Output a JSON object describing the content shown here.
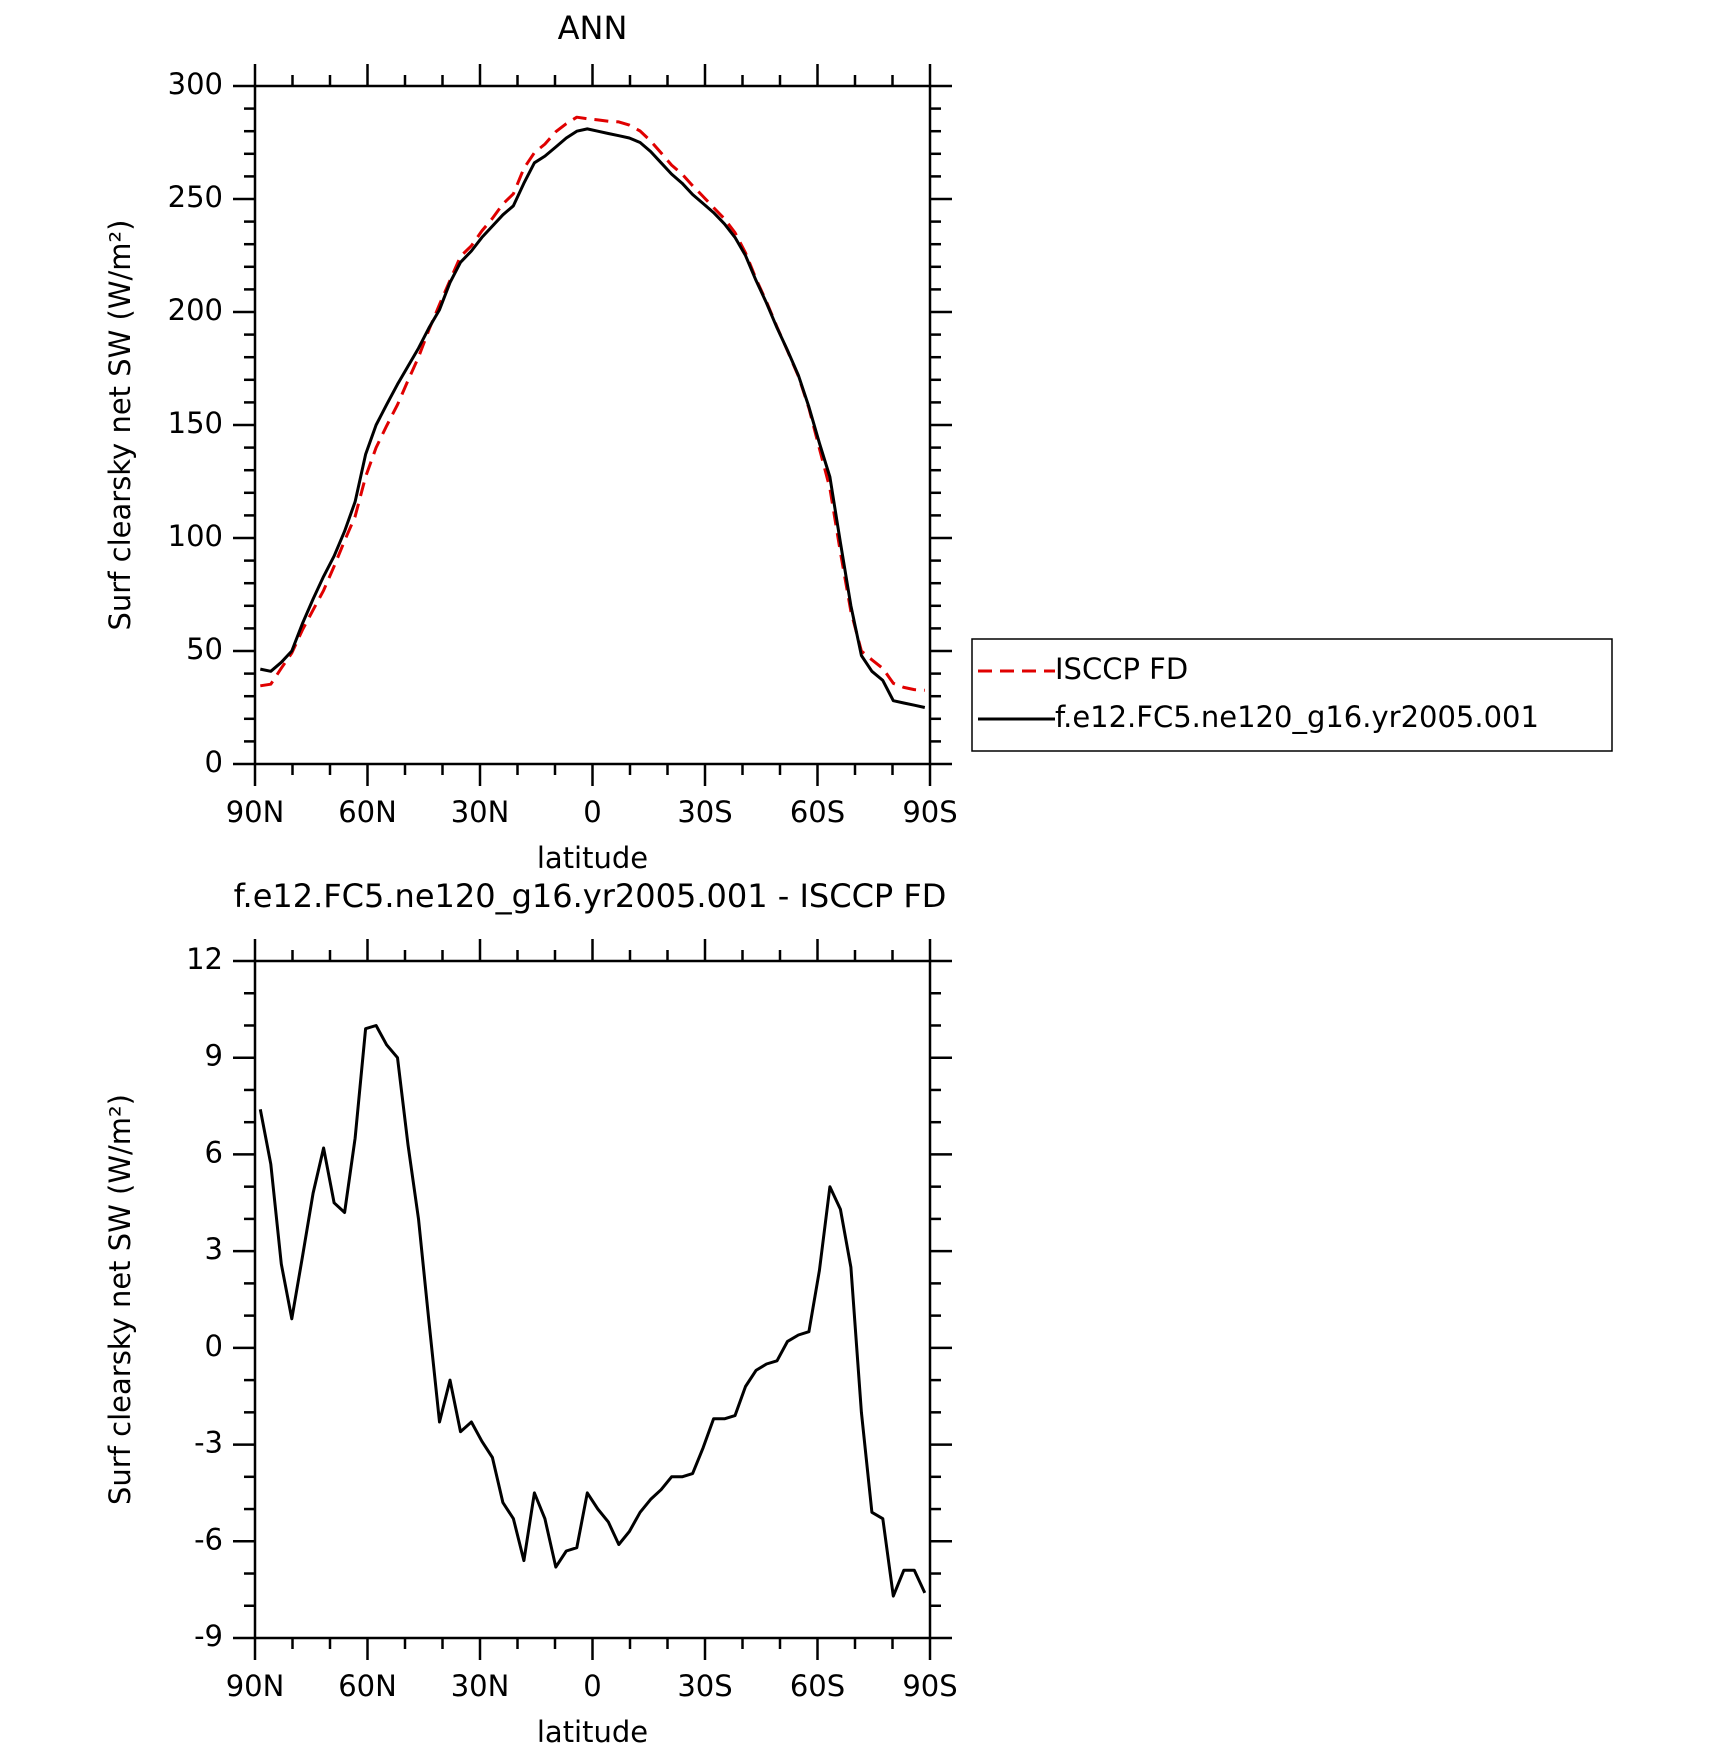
{
  "chart_data": [
    {
      "type": "line",
      "title": "ANN",
      "xlabel": "latitude",
      "ylabel": "Surf clearsky net SW (W/m²)",
      "xlim": [
        90,
        -90
      ],
      "xticks": [
        {
          "value": 90,
          "label": "90N"
        },
        {
          "value": 60,
          "label": "60N"
        },
        {
          "value": 30,
          "label": "30N"
        },
        0,
        {
          "value": -30,
          "label": "30S"
        },
        {
          "value": -60,
          "label": "60S"
        },
        {
          "value": -90,
          "label": "90S"
        }
      ],
      "ylim": [
        0,
        300
      ],
      "yticks": [
        0,
        50,
        100,
        150,
        200,
        250,
        300
      ],
      "legend": "right",
      "x": [
        88.6,
        85.8,
        83.0,
        80.2,
        77.4,
        74.5,
        71.7,
        68.9,
        66.1,
        63.3,
        60.5,
        57.7,
        54.9,
        52.0,
        49.2,
        46.4,
        43.6,
        40.8,
        38.0,
        35.2,
        32.3,
        29.5,
        26.7,
        23.9,
        21.1,
        18.3,
        15.5,
        12.7,
        9.8,
        7.0,
        4.2,
        1.4,
        -1.4,
        -4.2,
        -7.0,
        -9.8,
        -12.7,
        -15.5,
        -18.3,
        -21.1,
        -23.9,
        -26.7,
        -29.5,
        -32.3,
        -35.2,
        -38.0,
        -40.8,
        -43.6,
        -46.4,
        -49.2,
        -52.0,
        -54.9,
        -57.7,
        -60.5,
        -63.3,
        -66.1,
        -68.9,
        -71.7,
        -74.5,
        -77.4,
        -80.2,
        -83.0,
        -85.8,
        -88.6
      ],
      "series": [
        {
          "name": "ISCCP FD",
          "color": "#e00000",
          "linestyle": "dashed",
          "values": [
            34.6,
            35.3,
            42.4,
            49.1,
            59.2,
            68.2,
            76.8,
            87.5,
            98.8,
            109.5,
            127.1,
            140,
            149.6,
            159,
            169.7,
            180,
            192.2,
            203.3,
            214,
            224.6,
            229.3,
            235.9,
            241.4,
            247.8,
            252.3,
            263.6,
            270.5,
            274.3,
            279.8,
            283.3,
            286.2,
            285.5,
            285,
            284.4,
            284.1,
            282.7,
            280.1,
            275.7,
            270.4,
            265,
            261,
            255.9,
            251.1,
            246.2,
            241.2,
            235.1,
            226.2,
            214.7,
            204.5,
            193.4,
            182.8,
            171.6,
            157.5,
            139.6,
            122,
            93.7,
            67.5,
            50,
            46.1,
            42.3,
            35.7,
            33.9,
            32.9,
            32.6
          ]
        },
        {
          "name": "f.e12.FC5.ne120_g16.yr2005.001",
          "color": "#000000",
          "linestyle": "solid",
          "values": [
            42,
            41,
            45,
            50,
            62,
            73,
            83,
            92,
            103,
            116,
            137,
            150,
            159,
            168,
            176,
            184,
            193,
            201,
            213,
            222,
            227,
            233,
            238,
            243,
            247,
            257,
            266,
            269,
            273,
            277,
            280,
            281,
            280,
            279,
            278,
            277,
            275,
            271,
            266,
            261,
            257,
            252,
            248,
            244,
            239,
            233,
            225,
            214,
            204,
            193,
            183,
            172,
            158,
            142,
            127,
            98,
            70,
            48,
            41,
            37,
            28,
            27,
            26,
            25
          ]
        }
      ]
    },
    {
      "type": "line",
      "title": "f.e12.FC5.ne120_g16.yr2005.001 - ISCCP FD",
      "xlabel": "latitude",
      "ylabel": "Surf clearsky net SW (W/m²)",
      "xlim": [
        90,
        -90
      ],
      "xticks": [
        {
          "value": 90,
          "label": "90N"
        },
        {
          "value": 60,
          "label": "60N"
        },
        {
          "value": 30,
          "label": "30N"
        },
        0,
        {
          "value": -30,
          "label": "30S"
        },
        {
          "value": -60,
          "label": "60S"
        },
        {
          "value": -90,
          "label": "90S"
        }
      ],
      "ylim": [
        -9,
        12
      ],
      "yticks": [
        -9,
        -6,
        -3,
        0,
        3,
        6,
        9,
        12
      ],
      "x": [
        88.6,
        85.8,
        83.0,
        80.2,
        77.4,
        74.5,
        71.7,
        68.9,
        66.1,
        63.3,
        60.5,
        57.7,
        54.9,
        52.0,
        49.2,
        46.4,
        43.6,
        40.8,
        38.0,
        35.2,
        32.3,
        29.5,
        26.7,
        23.9,
        21.1,
        18.3,
        15.5,
        12.7,
        9.8,
        7.0,
        4.2,
        1.4,
        -1.4,
        -4.2,
        -7.0,
        -9.8,
        -12.7,
        -15.5,
        -18.3,
        -21.1,
        -23.9,
        -26.7,
        -29.5,
        -32.3,
        -35.2,
        -38.0,
        -40.8,
        -43.6,
        -46.4,
        -49.2,
        -52.0,
        -54.9,
        -57.7,
        -60.5,
        -63.3,
        -66.1,
        -68.9,
        -71.7,
        -74.5,
        -77.4,
        -80.2,
        -83.0,
        -85.8,
        -88.6
      ],
      "series": [
        {
          "color": "#000000",
          "linestyle": "solid",
          "values": [
            7.4,
            5.7,
            2.6,
            0.9,
            2.8,
            4.8,
            6.2,
            4.5,
            4.2,
            6.5,
            9.9,
            10.0,
            9.4,
            9.0,
            6.3,
            4.0,
            0.8,
            -2.3,
            -1.0,
            -2.6,
            -2.3,
            -2.9,
            -3.4,
            -4.8,
            -5.3,
            -6.6,
            -4.5,
            -5.3,
            -6.8,
            -6.3,
            -6.2,
            -4.5,
            -5.0,
            -5.4,
            -6.1,
            -5.7,
            -5.1,
            -4.7,
            -4.4,
            -4.0,
            -4.0,
            -3.9,
            -3.1,
            -2.2,
            -2.2,
            -2.1,
            -1.2,
            -0.7,
            -0.5,
            -0.4,
            0.2,
            0.4,
            0.5,
            2.4,
            5.0,
            4.3,
            2.5,
            -2.0,
            -5.1,
            -5.3,
            -7.7,
            -6.9,
            -6.9,
            -7.6
          ]
        }
      ]
    }
  ]
}
